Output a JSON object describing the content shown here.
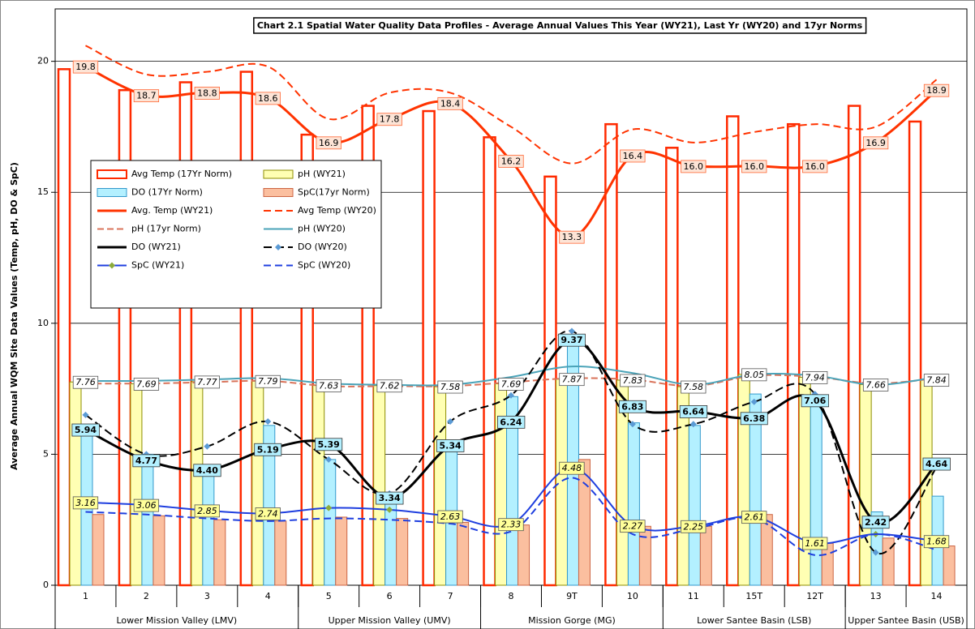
{
  "chart_data": {
    "type": "combo",
    "title": "Chart 2.1 Spatial Water Quality Data Profiles - Average Annual Values This Year (WY21), Last Yr (WY20) and 17yr Norms",
    "y_label": "Average Annual WQM Site Data Values (Temp, pH, DO & SpC)",
    "categories": [
      "1",
      "2",
      "3",
      "4",
      "5",
      "6",
      "7",
      "8",
      "9T",
      "10",
      "11",
      "15T",
      "12T",
      "13",
      "14"
    ],
    "groups": [
      {
        "label": "Lower Mission Valley (LMV)",
        "categories": [
          "1",
          "2",
          "3",
          "4"
        ]
      },
      {
        "label": "Upper Mission Valley (UMV)",
        "categories": [
          "5",
          "6",
          "7"
        ]
      },
      {
        "label": "Mission Gorge (MG)",
        "categories": [
          "8",
          "9T",
          "10"
        ]
      },
      {
        "label": "Lower Santee Basin (LSB)",
        "categories": [
          "11",
          "15T",
          "12T"
        ]
      },
      {
        "label": "Upper Santee Basin (USB)",
        "categories": [
          "13",
          "14"
        ]
      }
    ],
    "ylim": [
      0,
      22
    ],
    "yticks": [
      0,
      5,
      10,
      15,
      20
    ],
    "grid": true,
    "legend": "upper-left",
    "series": [
      {
        "name": "Avg Temp (17Yr Norm)",
        "kind": "bar",
        "color": "#ff2a00",
        "fill": "#ffffff",
        "values": [
          19.7,
          18.9,
          19.2,
          19.6,
          17.2,
          18.3,
          18.1,
          17.1,
          15.6,
          17.6,
          16.7,
          17.9,
          17.6,
          18.3,
          17.7
        ]
      },
      {
        "name": "pH (WY21)",
        "kind": "bar",
        "color": "#8c8c00",
        "fill": "#ffffb3",
        "values": [
          7.76,
          7.69,
          7.77,
          7.79,
          7.63,
          7.62,
          7.58,
          7.69,
          7.87,
          7.83,
          7.58,
          8.05,
          7.94,
          7.66,
          7.84
        ],
        "label_fill": "#ffffff",
        "label_style": "italic"
      },
      {
        "name": "DO (17Yr Norm)",
        "kind": "bar",
        "color": "#3399cc",
        "fill": "#b3f0ff",
        "values": [
          5.9,
          5.0,
          4.4,
          6.1,
          4.8,
          3.3,
          5.3,
          7.2,
          9.5,
          6.2,
          6.1,
          7.3,
          7.0,
          2.8,
          3.4
        ]
      },
      {
        "name": "SpC(17yr Norm)",
        "kind": "bar",
        "color": "#cc6644",
        "fill": "#fbbf9f",
        "values": [
          2.7,
          2.65,
          2.5,
          2.45,
          2.6,
          2.55,
          2.4,
          2.3,
          4.8,
          2.25,
          2.25,
          2.7,
          1.6,
          1.8,
          1.5
        ]
      },
      {
        "name": "Avg. Temp (WY21)",
        "kind": "line",
        "color": "#ff3300",
        "width": 3,
        "values": [
          19.8,
          18.7,
          18.8,
          18.6,
          16.9,
          17.8,
          18.4,
          16.2,
          13.3,
          16.4,
          16,
          16,
          16,
          16.9,
          18.9
        ],
        "value_labels": [
          "19.8",
          "18.7",
          "18.8",
          "18.6",
          "16.9",
          "17.8",
          "18.4",
          "16.2",
          "13.3",
          "16.4",
          "16.0",
          "16.0",
          "16.0",
          "16.9",
          "18.9"
        ],
        "label_fill": "#fde4d6",
        "label_style": "normal"
      },
      {
        "name": "Avg Temp (WY20)",
        "kind": "line",
        "color": "#ff3300",
        "width": 2,
        "dash": "9,5",
        "values": [
          20.6,
          19.5,
          19.6,
          19.8,
          17.8,
          18.8,
          18.8,
          17.5,
          16.1,
          17.4,
          16.9,
          17.3,
          17.6,
          17.5,
          19.3
        ]
      },
      {
        "name": "pH (17yr Norm)",
        "kind": "line",
        "color": "#d9735a",
        "width": 2,
        "dash": "8,4",
        "values": [
          7.7,
          7.7,
          7.75,
          7.8,
          7.6,
          7.6,
          7.6,
          7.75,
          7.9,
          7.85,
          7.6,
          8.0,
          7.95,
          7.7,
          7.9
        ]
      },
      {
        "name": "pH (WY20)",
        "kind": "line",
        "color": "#4aa3b8",
        "width": 2,
        "values": [
          7.8,
          7.8,
          7.85,
          7.9,
          7.7,
          7.65,
          7.65,
          7.95,
          8.35,
          8.1,
          7.65,
          8.05,
          8.0,
          7.65,
          7.95
        ]
      },
      {
        "name": "DO (WY21)",
        "kind": "line",
        "color": "#000000",
        "width": 3,
        "values": [
          5.94,
          4.77,
          4.4,
          5.19,
          5.39,
          3.34,
          5.34,
          6.24,
          9.37,
          6.83,
          6.64,
          6.38,
          7.06,
          2.42,
          4.64
        ],
        "value_labels": [
          "5.94",
          "4.77",
          "4.40",
          "5.19",
          "5.39",
          "3.34",
          "5.34",
          "6.24",
          "9.37",
          "6.83",
          "6.64",
          "6.38",
          "7.06",
          "2.42",
          "4.64"
        ],
        "label_fill": "#b3f0ff",
        "label_style": "bold"
      },
      {
        "name": "DO (WY20)",
        "kind": "line",
        "color": "#000000",
        "width": 2,
        "dash": "10,5",
        "marker": "#5b9bd5",
        "values": [
          6.5,
          5.0,
          5.3,
          6.25,
          4.8,
          3.5,
          6.25,
          7.25,
          9.7,
          6.15,
          6.15,
          7.0,
          7.3,
          1.25,
          4.5
        ]
      },
      {
        "name": "SpC (WY21)",
        "kind": "line",
        "color": "#1f3fdf",
        "width": 2,
        "marker": "#8cab3c",
        "values": [
          3.16,
          3.06,
          2.85,
          2.74,
          2.95,
          2.88,
          2.63,
          2.33,
          4.48,
          2.27,
          2.25,
          2.61,
          1.61,
          1.95,
          1.68
        ],
        "value_labels": [
          "3.16",
          "3.06",
          "2.85",
          "2.74",
          null,
          null,
          "2.63",
          "2.33",
          "4.48",
          "2.27",
          "2.25",
          "2.61",
          "1.61",
          null,
          "1.68"
        ],
        "label_fill": "#ffff99",
        "label_style": "italic"
      },
      {
        "name": "SpC (WY20)",
        "kind": "line",
        "color": "#1f3fdf",
        "width": 2,
        "dash": "9,5",
        "values": [
          2.8,
          2.7,
          2.55,
          2.45,
          2.55,
          2.5,
          2.35,
          2.05,
          4.1,
          1.95,
          2.15,
          2.55,
          1.15,
          1.95,
          1.35
        ]
      }
    ]
  }
}
